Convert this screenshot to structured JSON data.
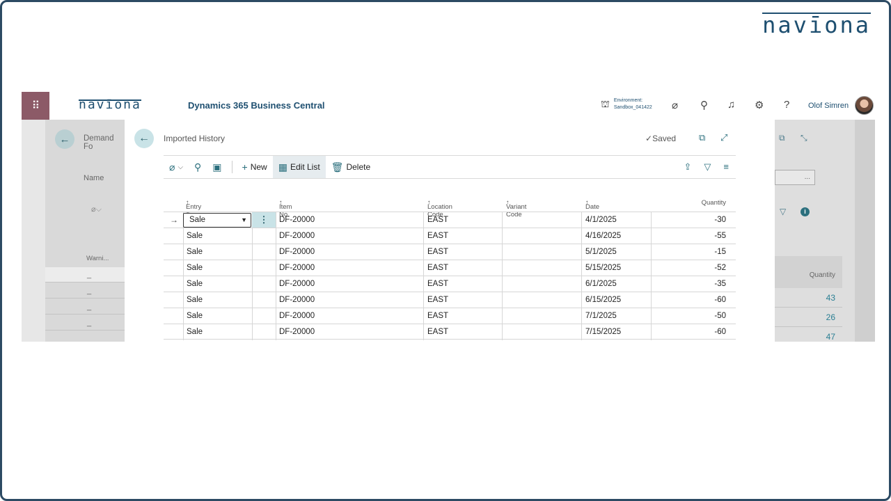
{
  "brand": {
    "logo_text": "navīona"
  },
  "appbar": {
    "app_logo": "navīona",
    "app_name": "Dynamics 365 Business Central",
    "environment_label": "Environment:",
    "environment_name": "Sandbox_041422",
    "user_name": "Olof Simren"
  },
  "background_left": {
    "title": "Demand Fo",
    "name_label": "Name",
    "column_header": "Warni...",
    "rows": [
      "_",
      "_",
      "_",
      "_"
    ]
  },
  "background_right": {
    "box_value": "...",
    "column_header": "Quantity",
    "values": [
      "43",
      "26",
      "47"
    ]
  },
  "page": {
    "title": "Imported History",
    "saved_label": "Saved",
    "actions": {
      "new": "New",
      "edit_list": "Edit List",
      "delete": "Delete"
    }
  },
  "grid": {
    "columns": [
      "Entry Type",
      "Item No.",
      "Location Code",
      "Variant Code",
      "Date",
      "Quantity"
    ],
    "rows": [
      {
        "entry_type": "Sale",
        "item_no": "DF-20000",
        "location": "EAST",
        "variant": "",
        "date": "4/1/2025",
        "quantity": "-30"
      },
      {
        "entry_type": "Sale",
        "item_no": "DF-20000",
        "location": "EAST",
        "variant": "",
        "date": "4/16/2025",
        "quantity": "-55"
      },
      {
        "entry_type": "Sale",
        "item_no": "DF-20000",
        "location": "EAST",
        "variant": "",
        "date": "5/1/2025",
        "quantity": "-15"
      },
      {
        "entry_type": "Sale",
        "item_no": "DF-20000",
        "location": "EAST",
        "variant": "",
        "date": "5/15/2025",
        "quantity": "-52"
      },
      {
        "entry_type": "Sale",
        "item_no": "DF-20000",
        "location": "EAST",
        "variant": "",
        "date": "6/1/2025",
        "quantity": "-35"
      },
      {
        "entry_type": "Sale",
        "item_no": "DF-20000",
        "location": "EAST",
        "variant": "",
        "date": "6/15/2025",
        "quantity": "-60"
      },
      {
        "entry_type": "Sale",
        "item_no": "DF-20000",
        "location": "EAST",
        "variant": "",
        "date": "7/1/2025",
        "quantity": "-50"
      },
      {
        "entry_type": "Sale",
        "item_no": "DF-20000",
        "location": "EAST",
        "variant": "",
        "date": "7/15/2025",
        "quantity": "-60"
      }
    ]
  },
  "colors": {
    "accent": "#2b6f7d",
    "brand": "#1e4f70",
    "waffle": "#8c5a67"
  }
}
